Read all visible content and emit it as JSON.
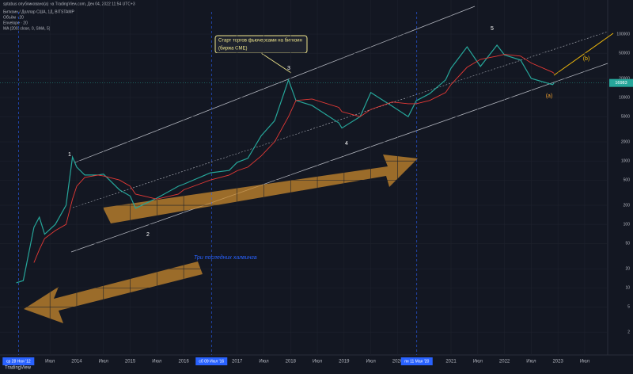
{
  "header": "sptabus опубликовано(а) на TradingView.com, Дек 04, 2022 11:54 UTC+3",
  "legend_lines": [
    "Биткоин / Доллар США, 1Д, BITSTAMP",
    "Объём · 20",
    "Envelope · 20",
    "MA (200, close, 0, SMA, 5)"
  ],
  "footer": "TradingView",
  "chart_data": {
    "type": "line",
    "log_scale": true,
    "x": [
      2012.87,
      2013.0,
      2013.2,
      2013.3,
      2013.4,
      2013.6,
      2013.8,
      2013.92,
      2014.0,
      2014.15,
      2014.4,
      2014.5,
      2014.8,
      2015.0,
      2015.1,
      2015.5,
      2015.9,
      2016.0,
      2016.5,
      2016.85,
      2017.0,
      2017.2,
      2017.45,
      2017.7,
      2017.96,
      2018.1,
      2018.4,
      2018.9,
      2018.96,
      2019.3,
      2019.5,
      2019.9,
      2020.2,
      2020.35,
      2020.6,
      2020.9,
      2021.0,
      2021.3,
      2021.55,
      2021.86,
      2022.0,
      2022.3,
      2022.5,
      2022.9,
      2022.93
    ],
    "series": [
      {
        "name": "BTCUSD",
        "color": "#26a69a",
        "values": [
          12,
          13,
          90,
          130,
          70,
          100,
          200,
          1150,
          800,
          600,
          600,
          620,
          350,
          280,
          180,
          260,
          400,
          430,
          650,
          710,
          950,
          1100,
          2500,
          4300,
          19000,
          9000,
          7500,
          4000,
          3300,
          5000,
          12000,
          7300,
          5000,
          8900,
          11500,
          19000,
          29000,
          63000,
          31000,
          67000,
          47000,
          39000,
          20000,
          16000,
          17000
        ]
      },
      {
        "name": "MA",
        "color": "#e53935",
        "values": [
          null,
          null,
          25,
          40,
          60,
          80,
          100,
          250,
          400,
          550,
          600,
          580,
          500,
          400,
          300,
          250,
          300,
          350,
          500,
          600,
          700,
          800,
          1200,
          2000,
          5000,
          9000,
          9500,
          7000,
          6000,
          5000,
          6500,
          8500,
          8000,
          8000,
          9000,
          12000,
          16000,
          30000,
          40000,
          45000,
          48000,
          45000,
          35000,
          25000,
          24000
        ]
      }
    ],
    "xlim": [
      2012.565,
      2023.93
    ],
    "xticks": [
      {
        "value": 2013.5,
        "label": "Июл"
      },
      {
        "value": 2014,
        "label": "2014"
      },
      {
        "value": 2014.5,
        "label": "Июл"
      },
      {
        "value": 2015,
        "label": "2015"
      },
      {
        "value": 2015.5,
        "label": "Июл"
      },
      {
        "value": 2016,
        "label": "2016"
      },
      {
        "value": 2017,
        "label": "2017"
      },
      {
        "value": 2017.5,
        "label": "Июл"
      },
      {
        "value": 2018,
        "label": "2018"
      },
      {
        "value": 2018.5,
        "label": "Июл"
      },
      {
        "value": 2019,
        "label": "2019"
      },
      {
        "value": 2019.5,
        "label": "Июл"
      },
      {
        "value": 2020,
        "label": "2020"
      },
      {
        "value": 2021,
        "label": "2021"
      },
      {
        "value": 2021.5,
        "label": "Июл"
      },
      {
        "value": 2022,
        "label": "2022"
      },
      {
        "value": 2022.5,
        "label": "Июл"
      },
      {
        "value": 2023,
        "label": "2023"
      },
      {
        "value": 2023.5,
        "label": "Июл"
      }
    ],
    "x_highlights": [
      {
        "value": 2012.91,
        "label": "ср 28 Ноя '12"
      },
      {
        "value": 2016.52,
        "label": "сб 09 Июл '16"
      },
      {
        "value": 2020.36,
        "label": "пн 11 Мая '20"
      }
    ],
    "ylim": [
      1.1,
      224000
    ],
    "yticks": [
      100000,
      50000,
      20000,
      10000,
      5000,
      2000,
      1000,
      500,
      200,
      100,
      50,
      20,
      10,
      5,
      2
    ],
    "last_price": 16983,
    "grid": true,
    "wave_labels": [
      "1",
      "2",
      "3",
      "4",
      "5",
      "(a)",
      "(b)"
    ],
    "cme_note": [
      "Старт торгов фьючерсами на биткоин",
      "(биржа CME)"
    ],
    "halving_note": "Три последних халвинга"
  }
}
